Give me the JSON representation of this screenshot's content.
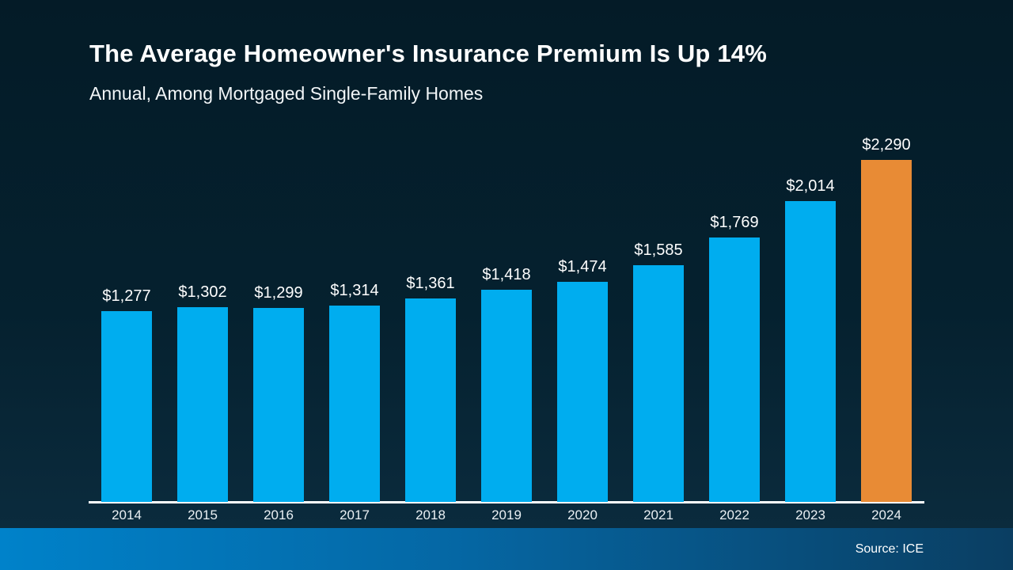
{
  "header": {
    "title": "The Average Homeowner's Insurance Premium Is Up 14%",
    "subtitle": "Annual, Among Mortgaged Single-Family Homes"
  },
  "footer": {
    "source": "Source: ICE"
  },
  "colors": {
    "background_top": "#041b27",
    "background_bottom": "#0c2d40",
    "bar_blue": "#00adef",
    "bar_orange": "#e88b35",
    "axis": "#ffffff",
    "footer_gradient_left": "#0082ca",
    "footer_gradient_right": "#0a3e62",
    "text": "#ffffff"
  },
  "chart_data": {
    "type": "bar",
    "title": "The Average Homeowner's Insurance Premium Is Up 14%",
    "subtitle": "Annual, Among Mortgaged Single-Family Homes",
    "xlabel": "",
    "ylabel": "",
    "categories": [
      "2014",
      "2015",
      "2016",
      "2017",
      "2018",
      "2019",
      "2020",
      "2021",
      "2022",
      "2023",
      "2024"
    ],
    "values": [
      1277,
      1302,
      1299,
      1314,
      1361,
      1418,
      1474,
      1585,
      1769,
      2014,
      2290
    ],
    "value_labels": [
      "$1,277",
      "$1,302",
      "$1,299",
      "$1,314",
      "$1,361",
      "$1,418",
      "$1,474",
      "$1,585",
      "$1,769",
      "$2,014",
      "$2,290"
    ],
    "bar_color": "#00adef",
    "highlight_color": "#e88b35",
    "highlight_index": 10,
    "ylim": [
      0,
      2400
    ],
    "grid": false,
    "legend": "none",
    "data_labels": "above-bars",
    "source": "Source: ICE"
  }
}
